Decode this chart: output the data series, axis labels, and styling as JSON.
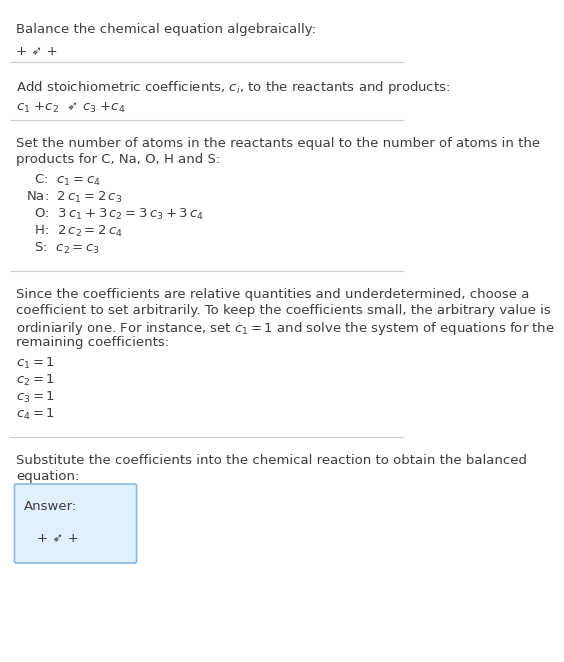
{
  "title": "Balance the chemical equation algebraically:",
  "line1": "+ ➶ +",
  "section2_title": "Add stoichiometric coefficients, $c_i$, to the reactants and products:",
  "line2": "$c_1$ +$c_2$  ➶ $c_3$ +$c_4$",
  "section3_title": "Set the number of atoms in the reactants equal to the number of atoms in the\nproducts for C, Na, O, H and S:",
  "equations": [
    "  C:  $c_1 = c_4$",
    "Na:  $2\\,c_1 = 2\\,c_3$",
    "  O:  $3\\,c_1 + 3\\,c_2 = 3\\,c_3 + 3\\,c_4$",
    "  H:  $2\\,c_2 = 2\\,c_4$",
    "  S:  $c_2 = c_3$"
  ],
  "section4_text": "Since the coefficients are relative quantities and underdetermined, choose a\ncoefficient to set arbitrarily. To keep the coefficients small, the arbitrary value is\nordiniarily one. For instance, set $c_1 = 1$ and solve the system of equations for the\nremaining coefficients:",
  "coeff_lines": [
    "$c_1 = 1$",
    "$c_2 = 1$",
    "$c_3 = 1$",
    "$c_4 = 1$"
  ],
  "section5_text": "Substitute the coefficients into the chemical reaction to obtain the balanced\nequation:",
  "answer_label": "Answer:",
  "answer_equation": "+ ➶ +",
  "bg_color": "#ffffff",
  "text_color": "#3c3c3c",
  "line_color": "#cccccc",
  "answer_box_color": "#e0f0ff",
  "answer_box_border": "#88bbdd"
}
